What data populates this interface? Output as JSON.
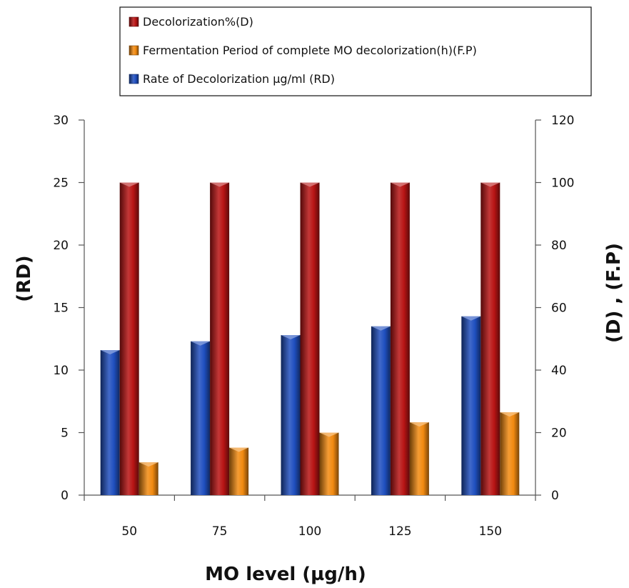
{
  "chart_data": {
    "type": "bar",
    "categories": [
      "50",
      "75",
      "100",
      "125",
      "150"
    ],
    "series": [
      {
        "name": "Rate of Decolorization µg/ml (RD)",
        "axis": "left",
        "color": "#1f4fbf",
        "values": [
          11.6,
          12.3,
          12.8,
          13.5,
          14.3
        ]
      },
      {
        "name": "Decolorization%(D)",
        "axis": "right",
        "color": "#b81414",
        "values": [
          100,
          100,
          100,
          100,
          100
        ]
      },
      {
        "name": "Fermentation Period of complete MO decolorization(h)(F.P)",
        "axis": "right",
        "color": "#f28a10",
        "values": [
          10.5,
          15.2,
          20,
          23.3,
          26.5
        ]
      }
    ],
    "legend_order": [
      1,
      2,
      0
    ],
    "legend_position": "top-center",
    "xlabel": "MO level (µg/h)",
    "ylabel_left": "(RD)",
    "ylabel_right": "(D) , (F.P)",
    "ylim_left": [
      0,
      30
    ],
    "yticks_left": [
      0,
      5,
      10,
      15,
      20,
      25,
      30
    ],
    "ylim_right": [
      0,
      120
    ],
    "yticks_right": [
      0,
      20,
      40,
      60,
      80,
      100,
      120
    ],
    "grid": false
  }
}
